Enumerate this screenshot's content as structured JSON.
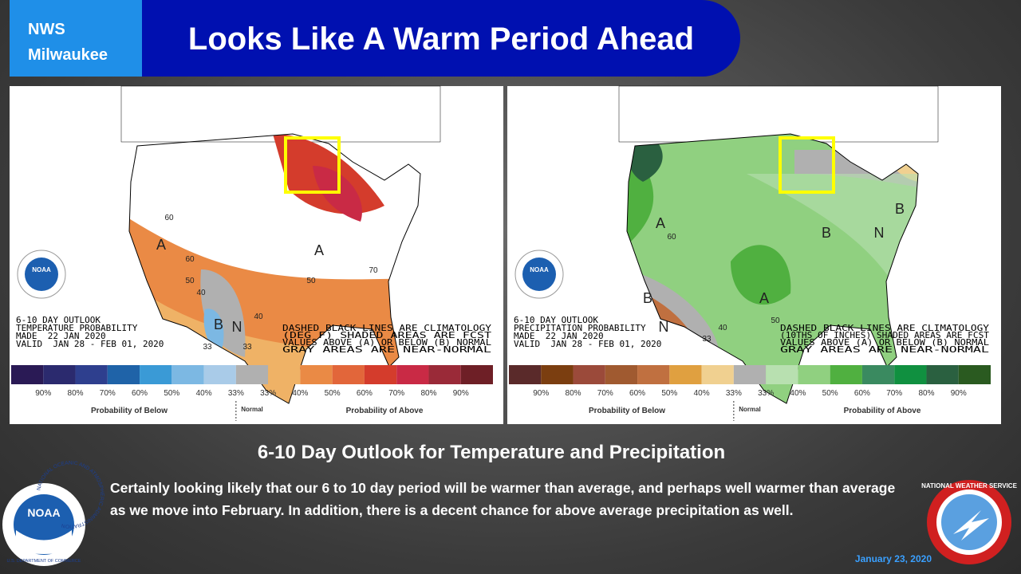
{
  "header": {
    "org": [
      "NWS",
      "Milwaukee"
    ],
    "title": "Looks Like A Warm Period Ahead"
  },
  "maps": [
    {
      "outlook": [
        "6-10 DAY OUTLOOK",
        "TEMPERATURE PROBABILITY",
        "MADE  22 JAN 2020",
        "VALID  JAN 28 - FEB 01, 2020"
      ],
      "notes": [
        "DASHED BLACK LINES ARE CLIMATOLOGY",
        "(DEG F) SHADED AREAS ARE FCST",
        "VALUES ABOVE (A) OR BELOW (B) NORMAL",
        "GRAY AREAS ARE NEAR-NORMAL"
      ],
      "labels": [
        "A",
        "A",
        "B",
        "N",
        "60",
        "60",
        "50",
        "40",
        "33",
        "33",
        "50",
        "70",
        "40"
      ],
      "colors": [
        "#2a1a55",
        "#2b2a6e",
        "#2e3f8e",
        "#1f63a8",
        "#3a9ad6",
        "#7cb8e3",
        "#a9cbe8",
        "#b0b0b0",
        "#efb266",
        "#ea8a45",
        "#e2663a",
        "#d43c2c",
        "#c92a45",
        "#9a2a38",
        "#6e1f26"
      ],
      "legend": {
        "ticks": [
          "90%",
          "80%",
          "70%",
          "60%",
          "50%",
          "40%",
          "33%",
          "33%",
          "40%",
          "50%",
          "60%",
          "70%",
          "80%",
          "90%"
        ],
        "below": "Probability of Below",
        "normal": "Normal",
        "above": "Probability of Above"
      },
      "logo": "NOAA"
    },
    {
      "outlook": [
        "6-10 DAY OUTLOOK",
        "PRECIPITATION PROBABILITY",
        "MADE  22 JAN 2020",
        "VALID  JAN 28 - FEB 01, 2020"
      ],
      "notes": [
        "DASHED BLACK LINES ARE CLIMATOLOGY",
        "(10THS OF INCHES) SHADED AREAS ARE FCST",
        "VALUES ABOVE (A) OR BELOW (B) NORMAL",
        "GRAY AREAS ARE NEAR-NORMAL"
      ],
      "labels": [
        "A",
        "A",
        "B",
        "B",
        "B",
        "N",
        "N",
        "40",
        "50",
        "33",
        "60"
      ],
      "colors": [
        "#5a2a2a",
        "#7b3e10",
        "#9b4a3a",
        "#a05a30",
        "#c07040",
        "#e0a040",
        "#f0d090",
        "#b0b0b0",
        "#b8e0b0",
        "#90d080",
        "#50b040",
        "#3a8a60",
        "#109040",
        "#2a6040",
        "#2a5a20"
      ],
      "legend": {
        "ticks": [
          "90%",
          "80%",
          "70%",
          "60%",
          "50%",
          "40%",
          "33%",
          "33%",
          "40%",
          "50%",
          "60%",
          "70%",
          "80%",
          "90%"
        ],
        "below": "Probability of Below",
        "normal": "Normal",
        "above": "Probability of Above"
      },
      "logo": "NOAA"
    }
  ],
  "subtitle": "6-10 Day Outlook for Temperature and Precipitation",
  "body": "Certainly looking likely that our 6 to 10 day period will be warmer than average, and perhaps well warmer than average as we move into February. In addition, there is a decent chance for above average precipitation as well.",
  "date": "January 23, 2020",
  "noaa_logo": {
    "label": "NOAA",
    "ring_top": "NATIONAL OCEANIC AND ATMOSPHERIC ADMINISTRATION",
    "ring_bottom": "U.S. DEPARTMENT OF COMMERCE"
  },
  "nws_logo": {
    "ring": "NATIONAL WEATHER SERVICE"
  }
}
